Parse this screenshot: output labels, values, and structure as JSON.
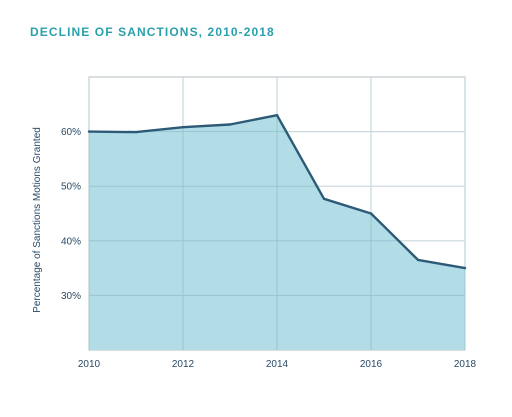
{
  "chart_data": {
    "type": "area",
    "title": "DECLINE OF SANCTIONS, 2010-2018",
    "ylabel": "Percentage of Sanctions Motions Granted",
    "xlabel": "",
    "x": [
      2010,
      2011,
      2012,
      2013,
      2014,
      2015,
      2016,
      2017,
      2018
    ],
    "series": [
      {
        "values": [
          60.0,
          59.9,
          60.8,
          61.3,
          63.0,
          47.7,
          45.0,
          36.5,
          35.0
        ]
      }
    ],
    "xlim": [
      2010,
      2018
    ],
    "ylim": [
      20,
      70
    ],
    "x_ticks": [
      2010,
      2012,
      2014,
      2016,
      2018
    ],
    "x_tick_labels": [
      "2010",
      "2012",
      "2014",
      "2016",
      "2018"
    ],
    "y_ticks": [
      30,
      40,
      50,
      60
    ],
    "y_tick_labels": [
      "30%",
      "40%",
      "50%",
      "60%"
    ],
    "grid": true,
    "colors": {
      "fill": "#b2dce6",
      "line": "#2d5b77",
      "grid": "#c8d8de",
      "axis": "#c0c8cc",
      "title": "#2aa0ac",
      "text": "#2a4a66"
    }
  }
}
